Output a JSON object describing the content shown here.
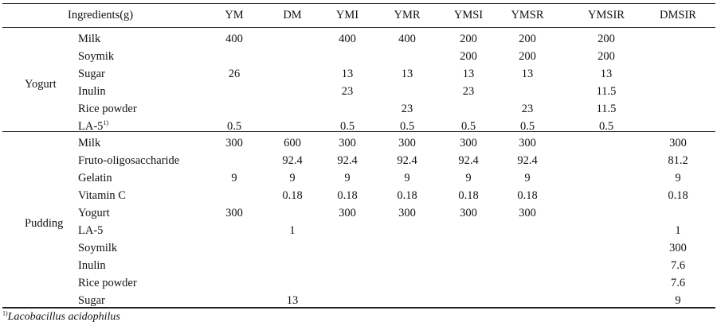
{
  "header": {
    "first": "Ingredients(g)",
    "columns": [
      "YM",
      "DM",
      "YMI",
      "YMR",
      "YMSI",
      "YMSR",
      "YMSIR",
      "DMSIR"
    ]
  },
  "groups": [
    {
      "label": "Yogurt",
      "rows": [
        {
          "name": "Milk",
          "sup": "",
          "values": [
            "400",
            "",
            "400",
            "400",
            "200",
            "200",
            "200",
            ""
          ]
        },
        {
          "name": "Soymik",
          "sup": "",
          "values": [
            "",
            "",
            "",
            "",
            "200",
            "200",
            "200",
            ""
          ]
        },
        {
          "name": "Sugar",
          "sup": "",
          "values": [
            "26",
            "",
            "13",
            "13",
            "13",
            "13",
            "13",
            ""
          ]
        },
        {
          "name": "Inulin",
          "sup": "",
          "values": [
            "",
            "",
            "23",
            "",
            "23",
            "",
            "11.5",
            ""
          ]
        },
        {
          "name": "Rice powder",
          "sup": "",
          "values": [
            "",
            "",
            "",
            "23",
            "",
            "23",
            "11.5",
            ""
          ]
        },
        {
          "name": "LA-5",
          "sup": "1)",
          "values": [
            "0.5",
            "",
            "0.5",
            "0.5",
            "0.5",
            "0.5",
            "0.5",
            ""
          ]
        }
      ]
    },
    {
      "label": "Pudding",
      "rows": [
        {
          "name": "Milk",
          "sup": "",
          "values": [
            "300",
            "600",
            "300",
            "300",
            "300",
            "300",
            "",
            "300"
          ]
        },
        {
          "name": "Fruto-oligosaccharide",
          "sup": "",
          "values": [
            "",
            "92.4",
            "92.4",
            "92.4",
            "92.4",
            "92.4",
            "",
            "81.2"
          ]
        },
        {
          "name": "Gelatin",
          "sup": "",
          "values": [
            "9",
            "9",
            "9",
            "9",
            "9",
            "9",
            "",
            "9"
          ]
        },
        {
          "name": "Vitamin C",
          "sup": "",
          "values": [
            "",
            "0.18",
            "0.18",
            "0.18",
            "0.18",
            "0.18",
            "",
            "0.18"
          ]
        },
        {
          "name": "Yogurt",
          "sup": "",
          "values": [
            "300",
            "",
            "300",
            "300",
            "300",
            "300",
            "",
            ""
          ]
        },
        {
          "name": "LA-5",
          "sup": "",
          "values": [
            "",
            "1",
            "",
            "",
            "",
            "",
            "",
            "1"
          ]
        },
        {
          "name": "Soymilk",
          "sup": "",
          "values": [
            "",
            "",
            "",
            "",
            "",
            "",
            "",
            "300"
          ]
        },
        {
          "name": "Inulin",
          "sup": "",
          "values": [
            "",
            "",
            "",
            "",
            "",
            "",
            "",
            "7.6"
          ]
        },
        {
          "name": "Rice powder",
          "sup": "",
          "values": [
            "",
            "",
            "",
            "",
            "",
            "",
            "",
            "7.6"
          ]
        },
        {
          "name": "Sugar",
          "sup": "",
          "values": [
            "",
            "13",
            "",
            "",
            "",
            "",
            "",
            "9"
          ]
        }
      ]
    }
  ],
  "footnote": {
    "mark": "1)",
    "text": "Lacobacillus acidophilus"
  }
}
